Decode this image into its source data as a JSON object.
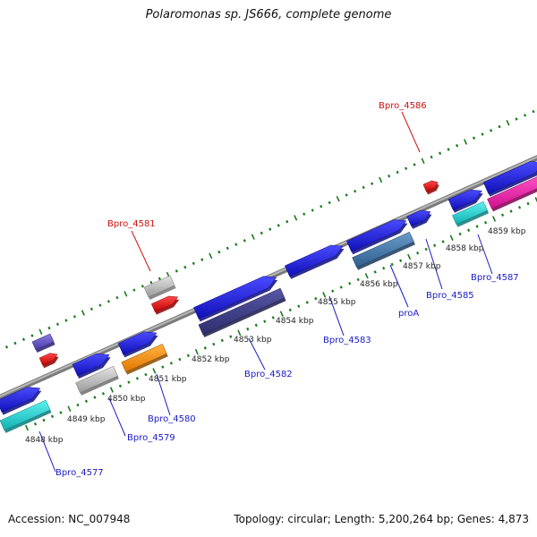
{
  "title": "Polaromonas sp. JS666, complete genome",
  "accession": "Accession: NC_007948",
  "summary": "Topology: circular; Length: 5,200,264 bp; Genes: 4,873",
  "colors": {
    "backbone": "#909090",
    "tick": "#1a7a1a",
    "cds_forward": "#1f1fe0",
    "cds_reverse_cyan": "#18d8d8",
    "highlight_red": "#ee1111",
    "pseudo_gray": "#bdbdbd",
    "label_blue": "#1a1ac8",
    "label_red": "#cc1111"
  },
  "kbp_labels": [
    "4848 kbp",
    "4849 kbp",
    "4850 kbp",
    "4851 kbp",
    "4852 kbp",
    "4853 kbp",
    "4854 kbp",
    "4855 kbp",
    "4856 kbp",
    "4857 kbp",
    "4858 kbp",
    "4859 kbp"
  ],
  "gene_labels": [
    "Bpro_4577",
    "Bpro_4579",
    "Bpro_4580",
    "Bpro_4581",
    "Bpro_4582",
    "Bpro_4583",
    "proA",
    "Bpro_4585",
    "Bpro_4586",
    "Bpro_4587"
  ]
}
